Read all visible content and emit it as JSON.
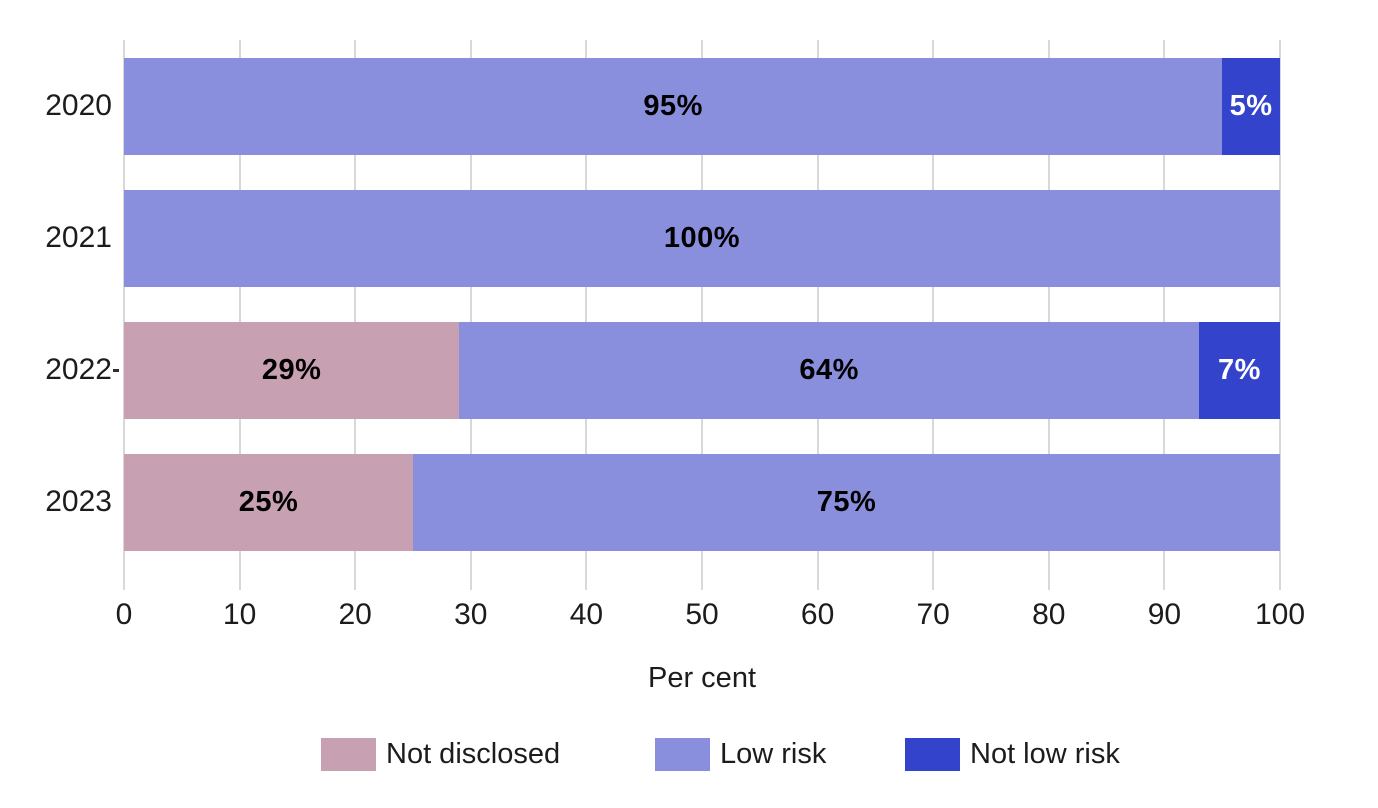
{
  "chart_data": {
    "type": "bar",
    "orientation": "horizontal",
    "stacked": true,
    "title": "",
    "xlabel": "Per cent",
    "ylabel": "",
    "xlim": [
      0,
      100
    ],
    "xticks": [
      0,
      10,
      20,
      30,
      40,
      50,
      60,
      70,
      80,
      90,
      100
    ],
    "grid": true,
    "legend_position": "bottom",
    "categories": [
      "2020",
      "2021",
      "2022",
      "2023"
    ],
    "series": [
      {
        "name": "Not disclosed",
        "color": "#c7a0b2",
        "label_text_color": "#000000",
        "values": [
          0,
          0,
          29,
          25
        ]
      },
      {
        "name": "Low risk",
        "color": "#8a8fdd",
        "label_text_color": "#000000",
        "values": [
          95,
          100,
          64,
          75
        ]
      },
      {
        "name": "Not low risk",
        "color": "#3443cb",
        "label_text_color": "#ffffff",
        "values": [
          5,
          0,
          7,
          0
        ]
      }
    ],
    "value_label_suffix": "%"
  },
  "colors": {
    "background": "#ffffff",
    "gridline": "#d8d8d8",
    "axis_text": "#1c1c1c"
  }
}
